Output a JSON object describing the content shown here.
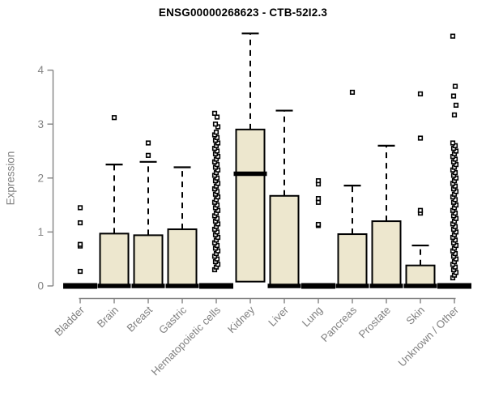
{
  "chart_data": {
    "type": "boxplot",
    "title": "ENSG00000268623 - CTB-52I2.3",
    "ylabel": "Expression",
    "xlabel": "",
    "ylim": [
      0,
      4.77
    ],
    "yticks": [
      0,
      1,
      2,
      3,
      4
    ],
    "grid": false,
    "legend": "none",
    "box_fill": "#EDE7CE",
    "box_border": "#000000",
    "axis_color": "#828282",
    "categories": [
      "Bladder",
      "Brain",
      "Breast",
      "Gastric",
      "Hematopoietic cells",
      "Kidney",
      "Liver",
      "Lung",
      "Pancreas",
      "Prostate",
      "Skin",
      "Unknown / Other"
    ],
    "series": [
      {
        "name": "Bladder",
        "q1": 0,
        "median": 0,
        "q3": 0,
        "whisker_low": 0,
        "whisker_high": 0,
        "outliers": [
          0.27,
          0.74,
          0.77,
          1.17,
          1.45
        ]
      },
      {
        "name": "Brain",
        "q1": 0,
        "median": 0,
        "q3": 0.97,
        "whisker_low": 0,
        "whisker_high": 2.25,
        "outliers": [
          3.12
        ]
      },
      {
        "name": "Breast",
        "q1": 0,
        "median": 0,
        "q3": 0.94,
        "whisker_low": 0,
        "whisker_high": 2.3,
        "outliers": [
          2.42,
          2.65
        ]
      },
      {
        "name": "Gastric",
        "q1": 0,
        "median": 0,
        "q3": 1.05,
        "whisker_low": 0,
        "whisker_high": 2.2,
        "outliers": []
      },
      {
        "name": "Hematopoietic cells",
        "q1": 0,
        "median": 0,
        "q3": 0,
        "whisker_low": 0,
        "whisker_high": 0,
        "outliers": [
          0.3,
          0.35,
          0.4,
          0.45,
          0.5,
          0.55,
          0.6,
          0.65,
          0.7,
          0.75,
          0.8,
          0.85,
          0.9,
          0.95,
          1.0,
          1.05,
          1.1,
          1.15,
          1.2,
          1.25,
          1.3,
          1.35,
          1.4,
          1.45,
          1.5,
          1.55,
          1.6,
          1.65,
          1.7,
          1.75,
          1.8,
          1.85,
          1.9,
          1.95,
          2.0,
          2.05,
          2.1,
          2.15,
          2.2,
          2.25,
          2.3,
          2.35,
          2.4,
          2.45,
          2.5,
          2.55,
          2.6,
          2.65,
          2.7,
          2.75,
          2.8,
          2.85,
          2.95,
          3.0,
          3.13,
          3.2
        ]
      },
      {
        "name": "Kidney",
        "q1": 0.08,
        "median": 2.08,
        "q3": 2.9,
        "whisker_low": 0.08,
        "whisker_high": 4.68,
        "outliers": []
      },
      {
        "name": "Liver",
        "q1": 0,
        "median": 0,
        "q3": 1.67,
        "whisker_low": 0,
        "whisker_high": 3.25,
        "outliers": []
      },
      {
        "name": "Lung",
        "q1": 0,
        "median": 0,
        "q3": 0,
        "whisker_low": 0,
        "whisker_high": 0,
        "outliers": [
          1.12,
          1.14,
          1.55,
          1.62,
          1.89,
          1.95
        ]
      },
      {
        "name": "Pancreas",
        "q1": 0,
        "median": 0,
        "q3": 0.96,
        "whisker_low": 0,
        "whisker_high": 1.86,
        "outliers": [
          3.59
        ]
      },
      {
        "name": "Prostate",
        "q1": 0,
        "median": 0,
        "q3": 1.2,
        "whisker_low": 0,
        "whisker_high": 2.6,
        "outliers": []
      },
      {
        "name": "Skin",
        "q1": 0,
        "median": 0,
        "q3": 0.38,
        "whisker_low": 0,
        "whisker_high": 0.75,
        "outliers": [
          1.35,
          1.4,
          2.74,
          3.56
        ]
      },
      {
        "name": "Unknown / Other",
        "q1": 0,
        "median": 0,
        "q3": 0,
        "whisker_low": 0,
        "whisker_high": 0,
        "outliers": [
          0.15,
          0.2,
          0.25,
          0.3,
          0.35,
          0.4,
          0.45,
          0.5,
          0.55,
          0.6,
          0.65,
          0.7,
          0.75,
          0.8,
          0.85,
          0.9,
          0.95,
          1.0,
          1.05,
          1.1,
          1.15,
          1.2,
          1.25,
          1.3,
          1.35,
          1.4,
          1.45,
          1.5,
          1.55,
          1.6,
          1.65,
          1.7,
          1.75,
          1.8,
          1.85,
          1.9,
          1.95,
          2.0,
          2.05,
          2.1,
          2.15,
          2.2,
          2.25,
          2.3,
          2.35,
          2.4,
          2.45,
          2.5,
          2.55,
          2.6,
          2.65,
          3.17,
          3.35,
          3.52,
          3.7,
          4.63
        ]
      }
    ]
  }
}
